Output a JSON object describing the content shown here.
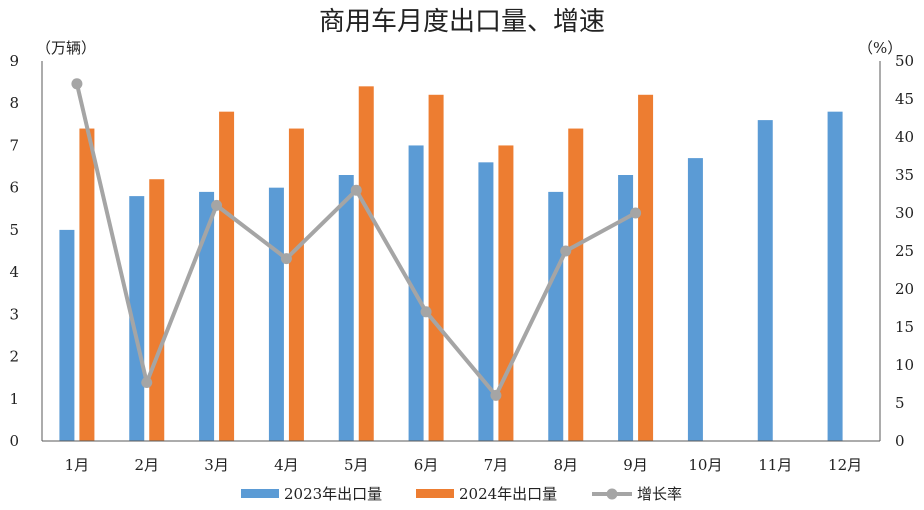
{
  "chart_data": {
    "type": "bar",
    "title": "商用车月度出口量、增速",
    "left_unit": "（万辆）",
    "right_unit": "（%）",
    "categories": [
      "1月",
      "2月",
      "3月",
      "4月",
      "5月",
      "6月",
      "7月",
      "8月",
      "9月",
      "10月",
      "11月",
      "12月"
    ],
    "series": [
      {
        "name": "2023年出口量",
        "type": "bar",
        "axis": "left",
        "color": "#5B9BD5",
        "values": [
          5.0,
          5.8,
          5.9,
          6.0,
          6.3,
          7.0,
          6.6,
          5.9,
          6.3,
          6.7,
          7.6,
          7.8
        ]
      },
      {
        "name": "2024年出口量",
        "type": "bar",
        "axis": "left",
        "color": "#ED7D31",
        "values": [
          7.4,
          6.2,
          7.8,
          7.4,
          8.4,
          8.2,
          7.0,
          7.4,
          8.2,
          null,
          null,
          null
        ]
      },
      {
        "name": "增长率",
        "type": "line",
        "axis": "right",
        "color": "#A5A5A5",
        "values": [
          47.0,
          7.7,
          31.0,
          24.0,
          33.0,
          17.0,
          6.0,
          25.0,
          30.0,
          null,
          null,
          null
        ]
      }
    ],
    "y_left": {
      "min": 0,
      "max": 9,
      "ticks": [
        "0",
        "1",
        "2",
        "3",
        "4",
        "5",
        "6",
        "7",
        "8",
        "9"
      ]
    },
    "y_right": {
      "min": 0,
      "max": 50,
      "ticks": [
        "0",
        "5",
        "10",
        "15",
        "20",
        "25",
        "30",
        "35",
        "40",
        "45",
        "50"
      ]
    },
    "grid": false,
    "legend_position": "bottom"
  }
}
